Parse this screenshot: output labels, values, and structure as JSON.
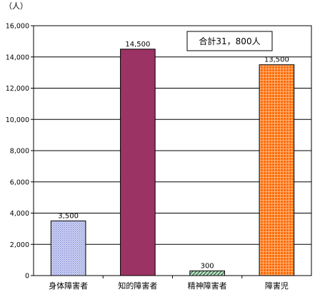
{
  "chart_data": {
    "type": "bar",
    "unit_label": "（人）",
    "categories": [
      "身体障害者",
      "知的障害者",
      "精神障害者",
      "障害児"
    ],
    "values": [
      3500,
      14500,
      300,
      13500
    ],
    "data_labels": [
      "3,500",
      "14,500",
      "300",
      "13,500"
    ],
    "yticks": [
      "0",
      "2,000",
      "4,000",
      "6,000",
      "8,000",
      "10,000",
      "12,000",
      "14,000",
      "16,000"
    ],
    "ylim": [
      0,
      16000
    ],
    "ystep": 2000,
    "grid": true,
    "annotation": "合計31，800人",
    "colors": {
      "bar_fills": [
        "#bfc6f0",
        "#9b3364",
        "#8fc29b",
        "#ff6a00"
      ],
      "bar_patterns": [
        "dots",
        "solid",
        "diagonal",
        "grid"
      ],
      "pattern_ink": [
        "#6f78c8",
        "#9b3364",
        "#3f7a52",
        "#c94600"
      ],
      "axis": "#000000",
      "grid": "#000000"
    }
  }
}
